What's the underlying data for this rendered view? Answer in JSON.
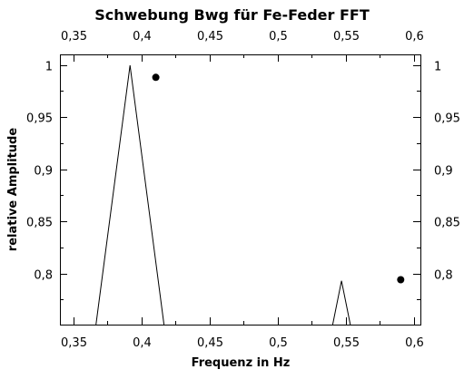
{
  "chart_data": {
    "type": "line",
    "title": "Schwebung Bwg für Fe-Feder FFT",
    "xlabel": "Frequenz in Hz",
    "ylabel": "relative Amplitude",
    "xlim": [
      0.34,
      0.605
    ],
    "ylim": [
      0.751,
      1.01
    ],
    "x_ticks": [
      0.35,
      0.4,
      0.45,
      0.5,
      0.55,
      0.6
    ],
    "x_tick_labels": [
      "0,35",
      "0,4",
      "0,45",
      "0,5",
      "0,55",
      "0,6"
    ],
    "y_ticks": [
      0.8,
      0.85,
      0.9,
      0.95,
      1.0
    ],
    "y_tick_labels": [
      "0,8",
      "0,85",
      "0,9",
      "0,95",
      "1"
    ],
    "grid": false,
    "series": [
      {
        "type": "line",
        "x": [
          0.3665,
          0.3915,
          0.4165
        ],
        "y": [
          0.751,
          0.9995,
          0.751
        ]
      },
      {
        "type": "line",
        "x": [
          0.5405,
          0.547,
          0.5535
        ],
        "y": [
          0.751,
          0.793,
          0.751
        ]
      },
      {
        "type": "scatter",
        "x": [
          0.4105,
          0.5905
        ],
        "y": [
          0.988,
          0.794
        ]
      }
    ]
  }
}
